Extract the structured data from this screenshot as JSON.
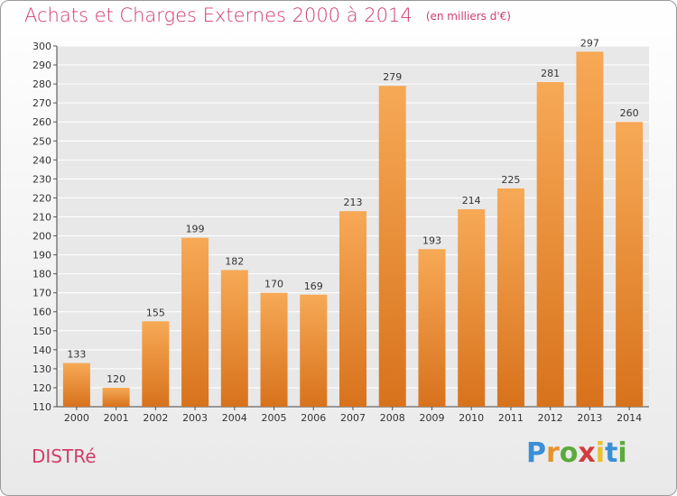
{
  "title": "Achats et Charges Externes 2000 à 2014",
  "unit": "(en milliers d'€)",
  "commune": "DISTRé",
  "logo": "Proxiti",
  "colors": {
    "title": "#d23c6b",
    "bar_light": "#f7a956",
    "bar_dark": "#d8721c",
    "grid": "#ffffff",
    "plot_bg": "#e8e8e8"
  },
  "chart_data": {
    "type": "bar",
    "title": "Achats et Charges Externes 2000 à 2014",
    "xlabel": "",
    "ylabel": "",
    "categories": [
      "2000",
      "2001",
      "2002",
      "2003",
      "2004",
      "2005",
      "2006",
      "2007",
      "2008",
      "2009",
      "2010",
      "2011",
      "2012",
      "2013",
      "2014"
    ],
    "values": [
      133,
      120,
      155,
      199,
      182,
      170,
      169,
      213,
      279,
      193,
      214,
      225,
      281,
      297,
      260
    ],
    "ylim": [
      110,
      300
    ],
    "yticks": [
      110,
      120,
      130,
      140,
      150,
      160,
      170,
      180,
      190,
      200,
      210,
      220,
      230,
      240,
      250,
      260,
      270,
      280,
      290,
      300
    ],
    "grid": true,
    "data_labels": true
  }
}
